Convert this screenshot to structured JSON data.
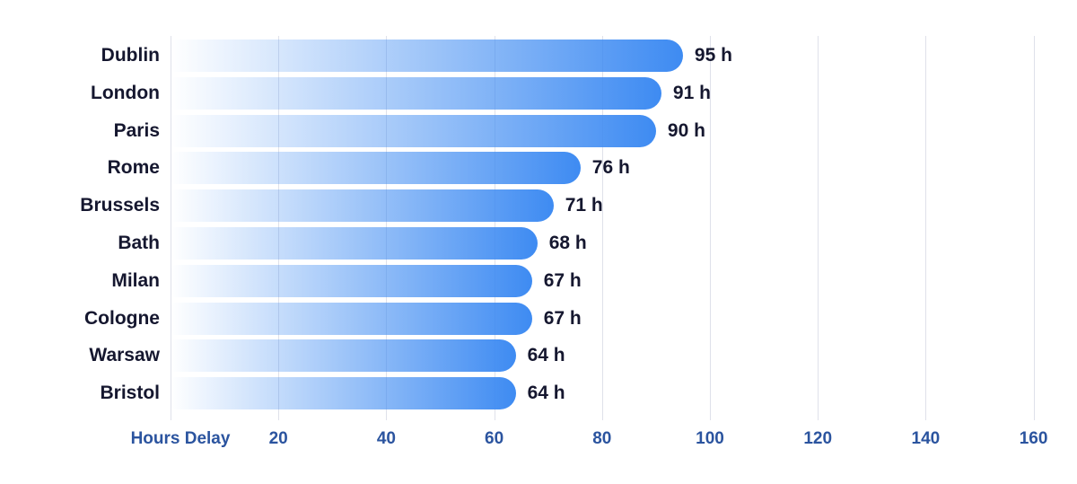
{
  "chart_data": {
    "type": "bar",
    "orientation": "horizontal",
    "title": "",
    "categories": [
      "Dublin",
      "London",
      "Paris",
      "Rome",
      "Brussels",
      "Bath",
      "Milan",
      "Cologne",
      "Warsaw",
      "Bristol"
    ],
    "values": [
      95,
      91,
      90,
      76,
      71,
      68,
      67,
      67,
      64,
      64
    ],
    "value_suffix": " h",
    "xlabel": "Hours Delay",
    "x_ticks": [
      20,
      40,
      60,
      80,
      100,
      120,
      140,
      160
    ],
    "xlim": [
      0,
      160
    ],
    "grid": "vertical-gridlines-every-20",
    "legend": "none",
    "colors": {
      "bar_blue": "#3e8bf2",
      "bar_fade_start": "rgba(62,139,242,0)",
      "city_label": "#15172f",
      "value_label": "#15172f",
      "axis_label": "#2b549f",
      "gridline": "#dfe1ea",
      "background": "#ffffff"
    }
  }
}
